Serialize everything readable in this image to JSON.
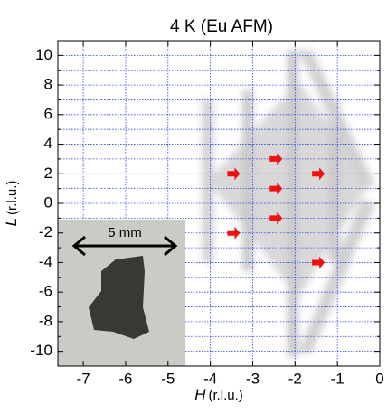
{
  "chart_data": {
    "type": "image",
    "title": "4 K (Eu AFM)",
    "xlabel_var": "H",
    "xlabel_unit": "(r.l.u.)",
    "ylabel_var": "L",
    "ylabel_unit": "(r.l.u.)",
    "xlim": [
      -7.6,
      0
    ],
    "ylim": [
      -11,
      11
    ],
    "xticks": [
      -7,
      -6,
      -5,
      -4,
      -3,
      -2,
      -1,
      0
    ],
    "yticks": [
      -10,
      -8,
      -6,
      -4,
      -2,
      0,
      2,
      4,
      6,
      8,
      10
    ],
    "yminorticks": [
      -9,
      -7,
      -5,
      -3,
      -1,
      1,
      3,
      5,
      7,
      9
    ],
    "grid": true,
    "grid_color": "#3344dd",
    "arrows": {
      "color": "#ee1111",
      "x": [
        -3.3,
        -2.3,
        -2.3,
        -2.3,
        -3.3,
        -1.3,
        -1.3
      ],
      "y": [
        2,
        3,
        1,
        -1,
        -2,
        2,
        -4
      ]
    },
    "inset_label": "5 mm"
  }
}
